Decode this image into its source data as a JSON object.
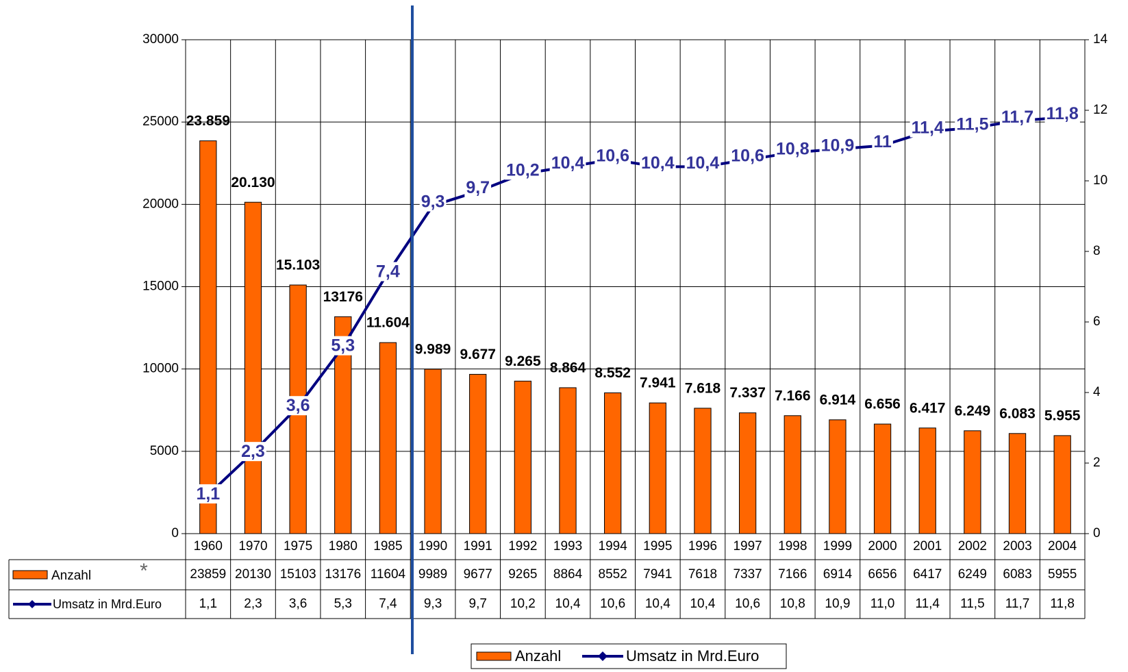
{
  "chart_data": {
    "type": "bar_line",
    "categories": [
      "1960",
      "1970",
      "1975",
      "1980",
      "1985",
      "1990",
      "1991",
      "1992",
      "1993",
      "1994",
      "1995",
      "1996",
      "1997",
      "1998",
      "1999",
      "2000",
      "2001",
      "2002",
      "2003",
      "2004"
    ],
    "series": [
      {
        "name": "Anzahl",
        "color": "#ff6600",
        "values": [
          23859,
          20130,
          15103,
          13176,
          11604,
          9989,
          9677,
          9265,
          8864,
          8552,
          7941,
          7618,
          7337,
          7166,
          6914,
          6656,
          6417,
          6249,
          6083,
          5955
        ],
        "value_labels": [
          "23.859",
          "20.130",
          "15.103",
          "13176",
          "11.604",
          "9.989",
          "9.677",
          "9.265",
          "8.864",
          "8.552",
          "7.941",
          "7.618",
          "7.337",
          "7.166",
          "6.914",
          "6.656",
          "6.417",
          "6.249",
          "6.083",
          "5.955"
        ]
      },
      {
        "name": "Umsatz in Mrd.Euro",
        "color": "#000080",
        "axis": "y2",
        "values": [
          1.1,
          2.3,
          3.6,
          5.3,
          7.4,
          9.3,
          9.7,
          10.2,
          10.4,
          10.6,
          10.4,
          10.4,
          10.6,
          10.8,
          10.9,
          11,
          11.4,
          11.5,
          11.7,
          11.8
        ],
        "value_labels": [
          "1,1",
          "2,3",
          "3,6",
          "5,3",
          "7,4",
          "9,3",
          "9,7",
          "10,2",
          "10,4",
          "10,6",
          "10,4",
          "10,4",
          "10,6",
          "10,8",
          "10,9",
          "11",
          "11,4",
          "11,5",
          "11,7",
          "11,8"
        ],
        "table_labels": [
          "1,1",
          "2,3",
          "3,6",
          "5,3",
          "7,4",
          "9,3",
          "9,7",
          "10,2",
          "10,4",
          "10,6",
          "10,4",
          "10,4",
          "10,6",
          "10,8",
          "10,9",
          "11,0",
          "11,4",
          "11,5",
          "11,7",
          "11,8"
        ]
      }
    ],
    "annotation": "*",
    "ylim": [
      0,
      30000
    ],
    "yticks": [
      0,
      5000,
      10000,
      15000,
      20000,
      25000,
      30000
    ],
    "y2lim": [
      0,
      14
    ],
    "y2ticks": [
      0,
      2,
      4,
      6,
      8,
      10,
      12,
      14
    ],
    "grid": true,
    "legend": "bottom"
  }
}
